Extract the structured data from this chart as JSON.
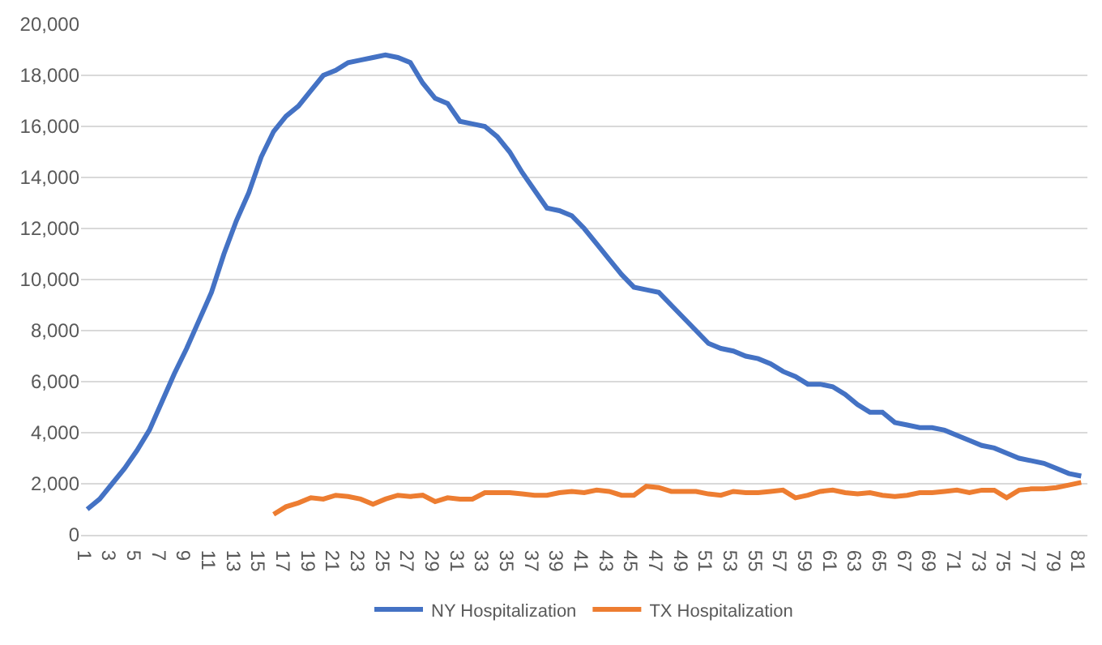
{
  "chart_data": {
    "type": "line",
    "categories": [
      "1",
      null,
      "3",
      null,
      "5",
      null,
      "7",
      null,
      "9",
      null,
      "11",
      null,
      "13",
      null,
      "15",
      null,
      "17",
      null,
      "19",
      null,
      "21",
      null,
      "23",
      null,
      "25",
      null,
      "27",
      null,
      "29",
      null,
      "31",
      null,
      "33",
      null,
      "35",
      null,
      "37",
      null,
      "39",
      null,
      "41",
      null,
      "43",
      null,
      "45",
      null,
      "47",
      null,
      "49",
      null,
      "51",
      null,
      "53",
      null,
      "55",
      null,
      "57",
      null,
      "59",
      null,
      "61",
      null,
      "63",
      null,
      "65",
      null,
      "67",
      null,
      "69",
      null,
      "71",
      null,
      "73",
      null,
      "75",
      null,
      "77",
      null,
      "79",
      null,
      "81"
    ],
    "series": [
      {
        "name": "NY Hospitalization",
        "color": "#4472c4",
        "values": [
          1000,
          1400,
          2000,
          2600,
          3300,
          4100,
          5200,
          6300,
          7300,
          8400,
          9500,
          11000,
          12300,
          13400,
          14800,
          15800,
          16400,
          16800,
          17400,
          18000,
          18200,
          18500,
          18600,
          18700,
          18800,
          18700,
          18500,
          17700,
          17100,
          16900,
          16200,
          16100,
          16000,
          15600,
          15000,
          14200,
          13500,
          12800,
          12700,
          12500,
          12000,
          11400,
          10800,
          10200,
          9700,
          9600,
          9500,
          9000,
          8500,
          8000,
          7500,
          7300,
          7200,
          7000,
          6900,
          6700,
          6400,
          6200,
          5900,
          5900,
          5800,
          5500,
          5100,
          4800,
          4800,
          4400,
          4300,
          4200,
          4200,
          4100,
          3900,
          3700,
          3500,
          3400,
          3200,
          3000,
          2900,
          2800,
          2600,
          2400,
          2300
        ]
      },
      {
        "name": "TX Hospitalization",
        "color": "#ed7d31",
        "values": [
          null,
          null,
          null,
          null,
          null,
          null,
          null,
          null,
          null,
          null,
          null,
          null,
          null,
          null,
          null,
          800,
          1100,
          1250,
          1450,
          1400,
          1550,
          1500,
          1400,
          1200,
          1400,
          1550,
          1500,
          1550,
          1300,
          1450,
          1400,
          1400,
          1650,
          1650,
          1650,
          1600,
          1550,
          1550,
          1650,
          1700,
          1650,
          1750,
          1700,
          1550,
          1550,
          1900,
          1850,
          1700,
          1700,
          1700,
          1600,
          1550,
          1700,
          1650,
          1650,
          1700,
          1750,
          1450,
          1550,
          1700,
          1750,
          1650,
          1600,
          1650,
          1550,
          1500,
          1550,
          1650,
          1650,
          1700,
          1750,
          1650,
          1750,
          1750,
          1450,
          1750,
          1800,
          1800,
          1850,
          1950,
          2050
        ]
      }
    ],
    "ylim": [
      0,
      20000
    ],
    "yticks": [
      {
        "value": 0,
        "label": "0"
      },
      {
        "value": 2000,
        "label": "2,000"
      },
      {
        "value": 4000,
        "label": "4,000"
      },
      {
        "value": 6000,
        "label": "6,000"
      },
      {
        "value": 8000,
        "label": "8,000"
      },
      {
        "value": 10000,
        "label": "10,000"
      },
      {
        "value": 12000,
        "label": "12,000"
      },
      {
        "value": 14000,
        "label": "14,000"
      },
      {
        "value": 16000,
        "label": "16,000"
      },
      {
        "value": 18000,
        "label": "18,000"
      },
      {
        "value": 20000,
        "label": "20,000"
      }
    ],
    "grid": "y",
    "legend": "bottom",
    "marker": "none",
    "line_style": "solid"
  }
}
